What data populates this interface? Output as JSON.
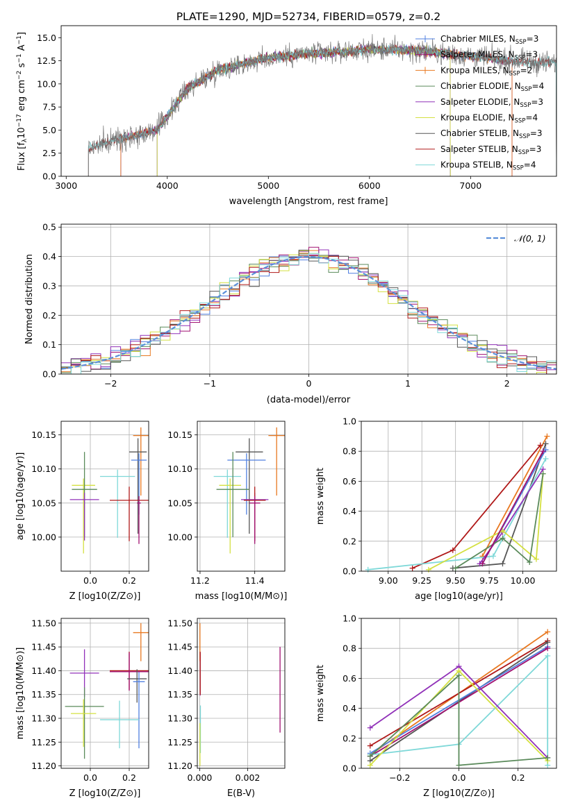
{
  "page_title": "PLATE=1290, MJD=52734, FIBERID=0579, z=0.2",
  "colors": {
    "Chabrier MILES": "#4f7fe0",
    "Salpeter MILES": "#a01070",
    "Kroupa MILES": "#e87820",
    "Chabrier ELODIE": "#5a8a5a",
    "Salpeter ELODIE": "#9030b8",
    "Kroupa ELODIE": "#d4e040",
    "Chabrier STELIB": "#555555",
    "Salpeter STELIB": "#b01818",
    "Kroupa STELIB": "#7ed8d8",
    "normal": "#5b8fd9",
    "grid": "#b0b0b0"
  },
  "chart_data": [
    {
      "id": "spectrum",
      "type": "line",
      "title": "PLATE=1290, MJD=52734, FIBERID=0579, z=0.2",
      "xlabel": "wavelength [Angstrom, rest frame]",
      "ylabel": "Flux [f",
      "ylabel_sub": "λ",
      "ylabel_rest": "10",
      "ylabel_sup": "−17",
      "ylabel_units": " erg cm",
      "xlim": [
        2950,
        7850
      ],
      "ylim": [
        0,
        16.3
      ],
      "xticks": [
        3000,
        4000,
        5000,
        6000,
        7000
      ],
      "yticks": [
        0.0,
        2.5,
        5.0,
        7.5,
        10.0,
        12.5,
        15.0
      ],
      "grid": false,
      "legend_position": "right",
      "legend": [
        {
          "name": "Chabrier MILES",
          "nssp": "3"
        },
        {
          "name": "Salpeter MILES",
          "nssp": "3"
        },
        {
          "name": "Kroupa MILES",
          "nssp": "2"
        },
        {
          "name": "Chabrier ELODIE",
          "nssp": "4"
        },
        {
          "name": "Salpeter ELODIE",
          "nssp": "3"
        },
        {
          "name": "Kroupa ELODIE",
          "nssp": "4"
        },
        {
          "name": "Chabrier STELIB",
          "nssp": "3"
        },
        {
          "name": "Salpeter STELIB",
          "nssp": "3"
        },
        {
          "name": "Kroupa STELIB",
          "nssp": "4"
        }
      ],
      "continuum": {
        "x": [
          3220,
          3500,
          3700,
          3900,
          4000,
          4200,
          4500,
          4800,
          5000,
          5300,
          5600,
          6000,
          6300,
          6600,
          7000,
          7300,
          7600
        ],
        "y": [
          3.0,
          4.0,
          4.5,
          5.0,
          6.5,
          9.5,
          11.5,
          12.3,
          12.8,
          13.2,
          13.4,
          13.7,
          13.7,
          13.5,
          13.0,
          12.6,
          12.3
        ]
      },
      "model_ranges": [
        {
          "name": "Chabrier MILES",
          "x": [
            3540,
            7410
          ]
        },
        {
          "name": "Salpeter MILES",
          "x": [
            3540,
            7410
          ]
        },
        {
          "name": "Kroupa MILES",
          "x": [
            3540,
            7410
          ]
        },
        {
          "name": "Chabrier ELODIE",
          "x": [
            3900,
            6800
          ]
        },
        {
          "name": "Salpeter ELODIE",
          "x": [
            3900,
            6800
          ]
        },
        {
          "name": "Kroupa ELODIE",
          "x": [
            3900,
            6800
          ]
        },
        {
          "name": "Chabrier STELIB",
          "x": [
            3220,
            7850
          ]
        },
        {
          "name": "Salpeter STELIB",
          "x": [
            3220,
            7850
          ]
        },
        {
          "name": "Kroupa STELIB",
          "x": [
            3220,
            7850
          ]
        }
      ],
      "data_series_color": "#777777"
    },
    {
      "id": "residuals",
      "type": "line",
      "xlabel": "(data-model)/error",
      "ylabel": "Normed distribution",
      "xlim": [
        -2.5,
        2.5
      ],
      "ylim": [
        0,
        0.51
      ],
      "xticks": [
        -2,
        -1,
        0,
        1,
        2
      ],
      "yticks": [
        0.0,
        0.1,
        0.2,
        0.3,
        0.4,
        0.5
      ],
      "grid": true,
      "legend_position": "top-right",
      "legend": [
        "𝒩(0, 1)"
      ],
      "bin_width": 0.1
    },
    {
      "id": "age-vs-Z",
      "type": "scatter",
      "xlabel": "Z [log10(Z/Z⊙)]",
      "ylabel": "age [log10(age/yr)]",
      "xlim": [
        -0.15,
        0.3
      ],
      "ylim": [
        9.95,
        10.17
      ],
      "xticks": [
        0.0,
        0.2
      ],
      "yticks": [
        10.0,
        10.05,
        10.1,
        10.15
      ],
      "grid": true,
      "points": [
        {
          "name": "Kroupa MILES",
          "x": 0.26,
          "y": 10.149,
          "xerr": 0.04,
          "yerr": [
            0.088,
            0.012
          ]
        },
        {
          "name": "Chabrier STELIB",
          "x": 0.245,
          "y": 10.125,
          "xerr": 0.045,
          "yerr": [
            0.12,
            0.02
          ]
        },
        {
          "name": "Chabrier MILES",
          "x": 0.25,
          "y": 10.113,
          "xerr": 0.04,
          "yerr": [
            0.08,
            0.01
          ]
        },
        {
          "name": "Kroupa STELIB",
          "x": 0.14,
          "y": 10.089,
          "xerr": 0.09,
          "yerr": [
            0.09,
            0.01
          ]
        },
        {
          "name": "Kroupa ELODIE",
          "x": -0.035,
          "y": 10.076,
          "xerr": 0.06,
          "yerr": [
            0.1,
            0.01
          ]
        },
        {
          "name": "Chabrier ELODIE",
          "x": -0.03,
          "y": 10.07,
          "xerr": 0.065,
          "yerr": [
            0.07,
            0.055
          ]
        },
        {
          "name": "Salpeter ELODIE",
          "x": -0.03,
          "y": 10.055,
          "xerr": 0.075,
          "yerr": [
            0.06,
            0.01
          ]
        },
        {
          "name": "Salpeter STELIB",
          "x": 0.2,
          "y": 10.054,
          "xerr": 0.1,
          "yerr": [
            0.06,
            0.02
          ]
        },
        {
          "name": "Salpeter MILES",
          "x": 0.25,
          "y": 10.05,
          "xerr": 0.01,
          "yerr": [
            0.06,
            0.01
          ]
        }
      ]
    },
    {
      "id": "age-vs-mass",
      "type": "scatter",
      "xlabel": "mass [log10(M/M⊙)]",
      "ylabel": "",
      "xlim": [
        11.19,
        11.51
      ],
      "ylim": [
        9.95,
        10.17
      ],
      "xticks": [
        11.2,
        11.4
      ],
      "yticks": [
        10.0,
        10.05,
        10.1,
        10.15
      ],
      "grid": true,
      "points": [
        {
          "name": "Kroupa MILES",
          "x": 11.48,
          "y": 10.149,
          "xerr": 0.03,
          "yerr": [
            0.088,
            0.012
          ]
        },
        {
          "name": "Chabrier STELIB",
          "x": 11.38,
          "y": 10.125,
          "xerr": 0.05,
          "yerr": [
            0.12,
            0.02
          ]
        },
        {
          "name": "Chabrier MILES",
          "x": 11.37,
          "y": 10.113,
          "xerr": 0.07,
          "yerr": [
            0.08,
            0.01
          ]
        },
        {
          "name": "Kroupa STELIB",
          "x": 11.3,
          "y": 10.089,
          "xerr": 0.05,
          "yerr": [
            0.09,
            0.01
          ]
        },
        {
          "name": "Kroupa ELODIE",
          "x": 11.31,
          "y": 10.076,
          "xerr": 0.04,
          "yerr": [
            0.1,
            0.01
          ]
        },
        {
          "name": "Chabrier ELODIE",
          "x": 11.32,
          "y": 10.07,
          "xerr": 0.06,
          "yerr": [
            0.07,
            0.055
          ]
        },
        {
          "name": "Salpeter ELODIE",
          "x": 11.4,
          "y": 10.055,
          "xerr": 0.05,
          "yerr": [
            0.06,
            0.01
          ]
        },
        {
          "name": "Salpeter STELIB",
          "x": 11.4,
          "y": 10.054,
          "xerr": 0.04,
          "yerr": [
            0.06,
            0.02
          ]
        },
        {
          "name": "Salpeter MILES",
          "x": 11.4,
          "y": 10.05,
          "xerr": 0.02,
          "yerr": [
            0.06,
            0.01
          ]
        }
      ]
    },
    {
      "id": "weight-vs-age",
      "type": "line",
      "xlabel": "age [log10(age/yr)]",
      "ylabel": "mass weight",
      "xlim": [
        8.8,
        10.25
      ],
      "ylim": [
        0,
        1.0
      ],
      "xticks": [
        9.0,
        9.25,
        9.5,
        9.75,
        10.0
      ],
      "yticks": [
        0.0,
        0.2,
        0.4,
        0.6,
        0.8,
        1.0
      ],
      "grid": true,
      "series": [
        {
          "name": "Kroupa MILES",
          "x": [
            9.7,
            10.18
          ],
          "y": [
            0.1,
            0.9
          ]
        },
        {
          "name": "Salpeter STELIB",
          "x": [
            9.18,
            9.48,
            10.13
          ],
          "y": [
            0.02,
            0.14,
            0.84
          ]
        },
        {
          "name": "Chabrier STELIB",
          "x": [
            9.48,
            9.85,
            10.17
          ],
          "y": [
            0.02,
            0.05,
            0.85
          ]
        },
        {
          "name": "Chabrier MILES",
          "x": [
            9.7,
            10.17
          ],
          "y": [
            0.05,
            0.81
          ]
        },
        {
          "name": "Kroupa STELIB",
          "x": [
            8.85,
            9.78,
            10.17
          ],
          "y": [
            0.01,
            0.1,
            0.75
          ]
        },
        {
          "name": "Salpeter ELODIE",
          "x": [
            9.68,
            9.85,
            10.15
          ],
          "y": [
            0.05,
            0.26,
            0.68
          ]
        },
        {
          "name": "Kroupa ELODIE",
          "x": [
            9.3,
            9.85,
            10.1,
            10.15
          ],
          "y": [
            0.01,
            0.27,
            0.08,
            0.65
          ]
        },
        {
          "name": "Chabrier ELODIE",
          "x": [
            9.5,
            9.85,
            10.05,
            10.15
          ],
          "y": [
            0.02,
            0.22,
            0.06,
            0.65
          ]
        },
        {
          "name": "Salpeter MILES",
          "x": [
            9.7,
            10.15
          ],
          "y": [
            0.05,
            0.8
          ]
        }
      ]
    },
    {
      "id": "mass-vs-Z",
      "type": "scatter",
      "xlabel": "Z [log10(Z/Z⊙)]",
      "ylabel": "mass [log10(M/M⊙)]",
      "xlim": [
        -0.15,
        0.3
      ],
      "ylim": [
        11.195,
        11.51
      ],
      "xticks": [
        0.0,
        0.2
      ],
      "yticks": [
        11.2,
        11.25,
        11.3,
        11.35,
        11.4,
        11.45,
        11.5
      ],
      "grid": true,
      "points": [
        {
          "name": "Kroupa MILES",
          "x": 0.26,
          "y": 11.48,
          "xerr": 0.04,
          "yerr": [
            0.06,
            0.02
          ]
        },
        {
          "name": "Salpeter STELIB",
          "x": 0.2,
          "y": 11.4,
          "xerr": 0.1,
          "yerr": [
            0.04,
            0.04
          ]
        },
        {
          "name": "Salpeter MILES",
          "x": 0.2,
          "y": 11.398,
          "xerr": 0.1,
          "yerr": [
            0.04,
            0.04
          ]
        },
        {
          "name": "Salpeter ELODIE",
          "x": -0.03,
          "y": 11.395,
          "xerr": 0.075,
          "yerr": [
            0.05,
            0.05
          ]
        },
        {
          "name": "Chabrier STELIB",
          "x": 0.24,
          "y": 11.383,
          "xerr": 0.05,
          "yerr": [
            0.05,
            0.02
          ]
        },
        {
          "name": "Chabrier MILES",
          "x": 0.25,
          "y": 11.377,
          "xerr": 0.03,
          "yerr": [
            0.14,
            0.02
          ]
        },
        {
          "name": "Chabrier ELODIE",
          "x": -0.03,
          "y": 11.325,
          "xerr": 0.1,
          "yerr": [
            0.11,
            0.04
          ]
        },
        {
          "name": "Kroupa ELODIE",
          "x": -0.035,
          "y": 11.31,
          "xerr": 0.065,
          "yerr": [
            0.07,
            0.03
          ]
        },
        {
          "name": "Kroupa STELIB",
          "x": 0.15,
          "y": 11.297,
          "xerr": 0.1,
          "yerr": [
            0.06,
            0.04
          ]
        }
      ]
    },
    {
      "id": "mass-vs-EBV",
      "type": "scatter",
      "xlabel": "E(B-V)",
      "ylabel": "",
      "xlim": [
        -0.0001,
        0.00355
      ],
      "ylim": [
        11.195,
        11.51
      ],
      "xticks": [
        0.0,
        0.002
      ],
      "xtick_labels": [
        "0.000",
        "0.002"
      ],
      "yticks": [
        11.2,
        11.25,
        11.3,
        11.35,
        11.4,
        11.45,
        11.5
      ],
      "grid": true,
      "points": [
        {
          "name": "Kroupa MILES",
          "x": 1e-05,
          "y": 11.48,
          "yerr": [
            0.06,
            0.02
          ]
        },
        {
          "name": "Salpeter MILES",
          "x": 2e-05,
          "y": 11.398,
          "yerr": [
            0.05,
            0.04
          ]
        },
        {
          "name": "Salpeter STELIB",
          "x": 2e-05,
          "y": 11.4,
          "yerr": [
            0.05,
            0.04
          ]
        },
        {
          "name": "Kroupa STELIB",
          "x": 3e-05,
          "y": 11.297,
          "yerr": [
            0.07,
            0.03
          ]
        },
        {
          "name": "Kroupa ELODIE",
          "x": 1e-05,
          "y": 11.26,
          "yerr": [
            0.06,
            0.03
          ]
        },
        {
          "name": "Salpeter MILES",
          "x": 0.00335,
          "y": 11.36,
          "yerr": [
            0.09,
            0.09
          ]
        }
      ]
    },
    {
      "id": "weight-vs-Z",
      "type": "line",
      "xlabel": "Z [log10(Z/Z⊙)]",
      "ylabel": "mass weight",
      "xlim": [
        -0.33,
        0.33
      ],
      "ylim": [
        0,
        1.0
      ],
      "xticks": [
        -0.2,
        0.0,
        0.2
      ],
      "yticks": [
        0.0,
        0.2,
        0.4,
        0.6,
        0.8,
        1.0
      ],
      "grid": true,
      "series": [
        {
          "name": "Kroupa MILES",
          "x": [
            -0.3,
            0.3
          ],
          "y": [
            0.09,
            0.91
          ]
        },
        {
          "name": "Salpeter STELIB",
          "x": [
            -0.3,
            0.3
          ],
          "y": [
            0.15,
            0.85
          ]
        },
        {
          "name": "Chabrier STELIB",
          "x": [
            -0.3,
            0.3
          ],
          "y": [
            0.05,
            0.84
          ]
        },
        {
          "name": "Chabrier MILES",
          "x": [
            -0.3,
            0.3
          ],
          "y": [
            0.1,
            0.81
          ]
        },
        {
          "name": "Salpeter MILES",
          "x": [
            -0.3,
            0.3
          ],
          "y": [
            0.08,
            0.8
          ]
        },
        {
          "name": "Kroupa STELIB",
          "x": [
            -0.3,
            0.0,
            0.3,
            0.3
          ],
          "y": [
            0.09,
            0.16,
            0.75,
            0.02
          ]
        },
        {
          "name": "Salpeter ELODIE",
          "x": [
            -0.3,
            0.0,
            0.3
          ],
          "y": [
            0.27,
            0.68,
            0.07
          ]
        },
        {
          "name": "Kroupa ELODIE",
          "x": [
            -0.3,
            0.0,
            0.3
          ],
          "y": [
            0.02,
            0.65,
            0.05
          ]
        },
        {
          "name": "Chabrier ELODIE",
          "x": [
            -0.3,
            0.0,
            0.0,
            0.3
          ],
          "y": [
            0.08,
            0.62,
            0.02,
            0.07
          ]
        }
      ]
    }
  ]
}
